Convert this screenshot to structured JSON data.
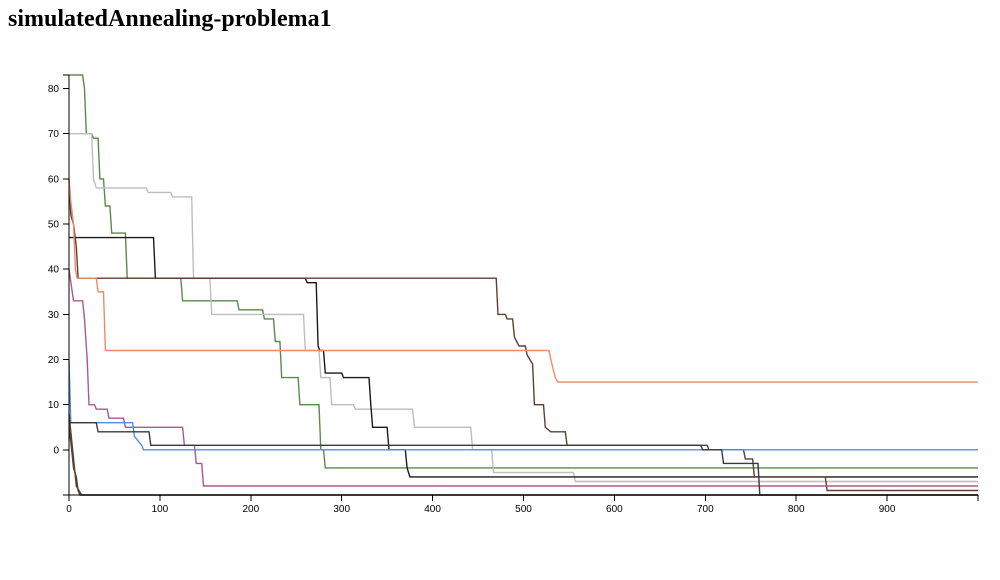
{
  "page": {
    "title": "simulatedAnnealing-problema1"
  },
  "chart_data": {
    "type": "line",
    "title": "simulatedAnnealing-problema1",
    "xlabel": "",
    "ylabel": "",
    "xlim": [
      0,
      1000
    ],
    "ylim": [
      -10,
      83
    ],
    "x_ticks": [
      0,
      100,
      200,
      300,
      400,
      500,
      600,
      700,
      800,
      900
    ],
    "y_ticks": [
      0,
      10,
      20,
      30,
      40,
      50,
      60,
      70,
      80
    ],
    "grid": false,
    "legend": "none",
    "series": [
      {
        "color": "#5a8a4a",
        "points": [
          [
            0,
            83
          ],
          [
            15,
            83
          ],
          [
            17,
            80
          ],
          [
            19,
            70
          ],
          [
            25,
            70
          ],
          [
            27,
            69
          ],
          [
            32,
            69
          ],
          [
            34,
            60
          ],
          [
            38,
            60
          ],
          [
            40,
            54
          ],
          [
            45,
            54
          ],
          [
            47,
            48
          ],
          [
            62,
            48
          ],
          [
            64,
            38
          ],
          [
            123,
            38
          ],
          [
            125,
            33
          ],
          [
            185,
            33
          ],
          [
            187,
            31
          ],
          [
            213,
            31
          ],
          [
            215,
            29
          ],
          [
            225,
            29
          ],
          [
            227,
            24
          ],
          [
            232,
            24
          ],
          [
            234,
            16
          ],
          [
            252,
            16
          ],
          [
            254,
            10
          ],
          [
            275,
            10
          ],
          [
            277,
            0
          ],
          [
            280,
            0
          ],
          [
            282,
            -4
          ],
          [
            1000,
            -4
          ]
        ]
      },
      {
        "color": "#bdbdbd",
        "points": [
          [
            0,
            70
          ],
          [
            25,
            70
          ],
          [
            27,
            60
          ],
          [
            30,
            58
          ],
          [
            85,
            58
          ],
          [
            87,
            57
          ],
          [
            112,
            57
          ],
          [
            114,
            56
          ],
          [
            135,
            56
          ],
          [
            137,
            38
          ],
          [
            155,
            38
          ],
          [
            157,
            30
          ],
          [
            258,
            30
          ],
          [
            260,
            22
          ],
          [
            275,
            22
          ],
          [
            277,
            16
          ],
          [
            287,
            16
          ],
          [
            289,
            10
          ],
          [
            313,
            10
          ],
          [
            315,
            9
          ],
          [
            378,
            9
          ],
          [
            380,
            5
          ],
          [
            442,
            5
          ],
          [
            444,
            0
          ],
          [
            465,
            0
          ],
          [
            467,
            -5
          ],
          [
            555,
            -5
          ],
          [
            557,
            -7
          ],
          [
            1000,
            -7
          ]
        ]
      },
      {
        "color": "#1a1a1a",
        "points": [
          [
            0,
            47
          ],
          [
            93,
            47
          ],
          [
            95,
            38
          ],
          [
            260,
            38
          ],
          [
            262,
            37
          ],
          [
            272,
            37
          ],
          [
            274,
            23
          ],
          [
            276,
            22
          ],
          [
            280,
            22
          ],
          [
            282,
            17
          ],
          [
            300,
            17
          ],
          [
            302,
            16
          ],
          [
            330,
            16
          ],
          [
            332,
            10
          ],
          [
            334,
            5
          ],
          [
            350,
            5
          ],
          [
            352,
            0
          ],
          [
            370,
            0
          ],
          [
            372,
            -4
          ],
          [
            375,
            -6
          ],
          [
            1000,
            -6
          ]
        ]
      },
      {
        "color": "#5e4030",
        "points": [
          [
            0,
            60
          ],
          [
            2,
            52
          ],
          [
            5,
            50
          ],
          [
            8,
            45
          ],
          [
            10,
            38
          ],
          [
            470,
            38
          ],
          [
            472,
            30
          ],
          [
            480,
            30
          ],
          [
            482,
            29
          ],
          [
            488,
            29
          ],
          [
            490,
            25
          ],
          [
            495,
            23
          ],
          [
            502,
            23
          ],
          [
            504,
            21
          ],
          [
            510,
            19
          ],
          [
            512,
            10
          ],
          [
            522,
            10
          ],
          [
            524,
            5
          ],
          [
            530,
            4
          ],
          [
            546,
            4
          ],
          [
            548,
            1
          ],
          [
            702,
            1
          ],
          [
            704,
            0
          ],
          [
            742,
            0
          ],
          [
            744,
            -2
          ],
          [
            752,
            -2
          ],
          [
            754,
            -6
          ],
          [
            832,
            -6
          ],
          [
            834,
            -9
          ],
          [
            1000,
            -9
          ]
        ]
      },
      {
        "color": "#ee8a66",
        "points": [
          [
            0,
            60
          ],
          [
            2,
            55
          ],
          [
            5,
            50
          ],
          [
            7,
            40
          ],
          [
            9,
            38
          ],
          [
            30,
            38
          ],
          [
            32,
            35
          ],
          [
            38,
            35
          ],
          [
            40,
            22
          ],
          [
            528,
            22
          ],
          [
            530,
            20
          ],
          [
            535,
            16
          ],
          [
            538,
            15
          ],
          [
            1000,
            15
          ]
        ]
      },
      {
        "color": "#a85a8a",
        "points": [
          [
            0,
            40
          ],
          [
            5,
            33
          ],
          [
            15,
            33
          ],
          [
            17,
            29
          ],
          [
            20,
            20
          ],
          [
            22,
            10
          ],
          [
            28,
            10
          ],
          [
            30,
            9
          ],
          [
            42,
            9
          ],
          [
            44,
            7
          ],
          [
            60,
            7
          ],
          [
            62,
            5
          ],
          [
            125,
            5
          ],
          [
            127,
            1
          ],
          [
            138,
            1
          ],
          [
            140,
            -3
          ],
          [
            146,
            -3
          ],
          [
            148,
            -8
          ],
          [
            1000,
            -8
          ]
        ]
      },
      {
        "color": "#4a90e2",
        "points": [
          [
            0,
            20
          ],
          [
            2,
            6
          ],
          [
            70,
            6
          ],
          [
            72,
            3
          ],
          [
            80,
            1
          ],
          [
            82,
            0
          ],
          [
            1000,
            0
          ]
        ]
      },
      {
        "color": "#3a3a3a",
        "points": [
          [
            0,
            6
          ],
          [
            30,
            6
          ],
          [
            32,
            4
          ],
          [
            88,
            4
          ],
          [
            90,
            1
          ],
          [
            695,
            1
          ],
          [
            697,
            0
          ],
          [
            718,
            0
          ],
          [
            720,
            -3
          ],
          [
            758,
            -3
          ],
          [
            760,
            -10
          ],
          [
            1000,
            -10
          ]
        ]
      },
      {
        "color": "#444444",
        "points": [
          [
            0,
            5
          ],
          [
            3,
            0
          ],
          [
            5,
            -4
          ],
          [
            8,
            -6
          ],
          [
            10,
            -9
          ],
          [
            12,
            -10
          ],
          [
            1000,
            -10
          ]
        ]
      },
      {
        "color": "#5e4030",
        "points": [
          [
            0,
            8
          ],
          [
            8,
            -8
          ],
          [
            14,
            -10
          ],
          [
            1000,
            -10
          ]
        ]
      }
    ]
  }
}
